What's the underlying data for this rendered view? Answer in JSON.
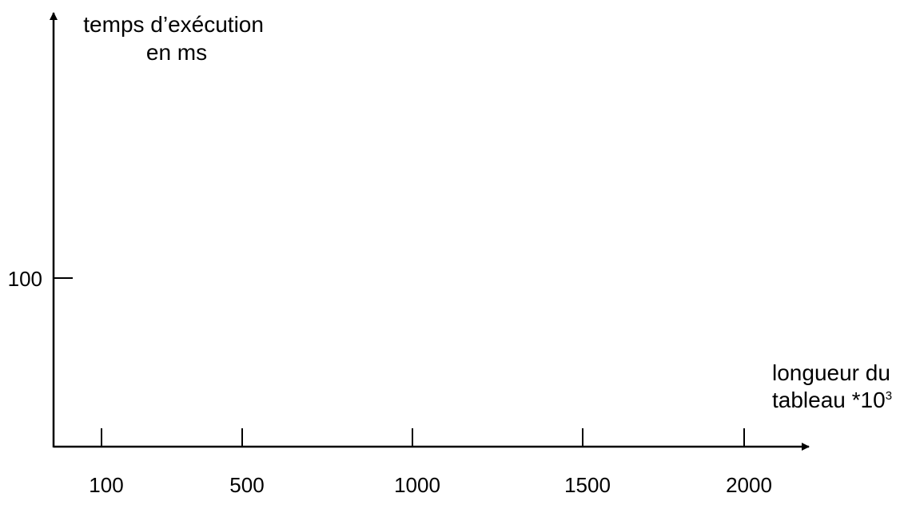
{
  "chart_data": {
    "type": "line",
    "title": "",
    "ylabel_lines": [
      "temps d’exécution",
      "en ms"
    ],
    "xlabel_lines": [
      "longueur du",
      "tableau *10"
    ],
    "xlabel_superscript": "3",
    "x_ticks": [
      {
        "value": 100,
        "label": "100"
      },
      {
        "value": 500,
        "label": "500"
      },
      {
        "value": 1000,
        "label": "1000"
      },
      {
        "value": 1500,
        "label": "1500"
      },
      {
        "value": 2000,
        "label": "2000"
      }
    ],
    "y_ticks": [
      {
        "value": 100,
        "label": "100"
      }
    ],
    "series": [],
    "grid": false,
    "legend": "none",
    "colors": {
      "axis": "#000000",
      "background": "#ffffff"
    }
  }
}
